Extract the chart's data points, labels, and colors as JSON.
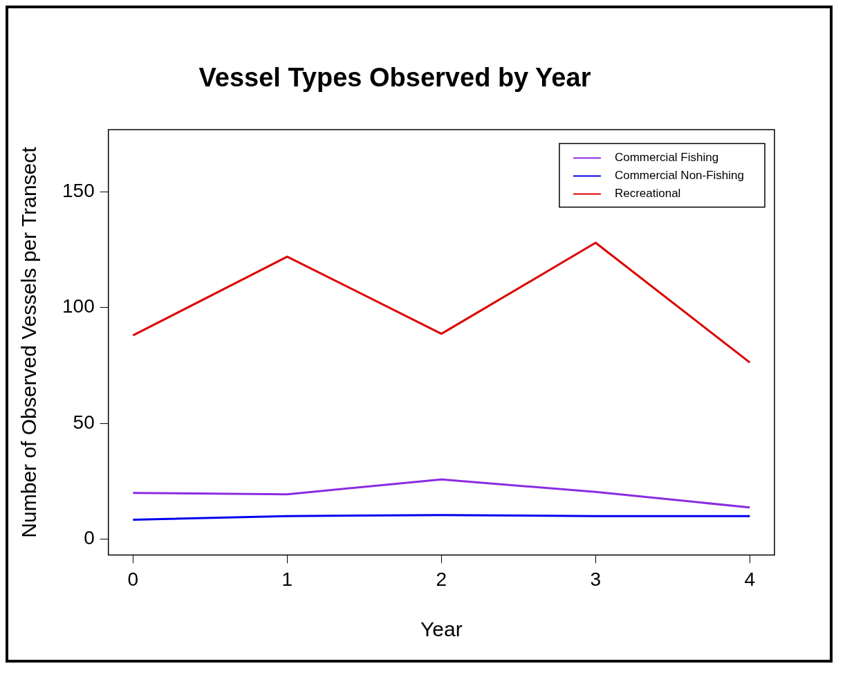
{
  "chart_data": {
    "type": "line",
    "title": "Vessel Types Observed by Year",
    "xlabel": "Year",
    "ylabel": "Number of Observed Vessels per Transect",
    "x": [
      0,
      1,
      2,
      3,
      4
    ],
    "xlim": [
      -0.16,
      4.16
    ],
    "xticks": [
      0,
      1,
      2,
      3,
      4
    ],
    "ylim": [
      -6.8,
      176.8
    ],
    "yticks": [
      0,
      50,
      100,
      150
    ],
    "series": [
      {
        "name": "Commercial Fishing",
        "color": "#8a2be2",
        "values": [
          20,
          19.4,
          25.8,
          20.4,
          13.7
        ]
      },
      {
        "name": "Commercial Non-Fishing",
        "color": "#0000ee",
        "values": [
          8.4,
          10,
          10.4,
          10,
          10
        ]
      },
      {
        "name": "Recreational",
        "color": "#dd0000",
        "values": [
          88,
          122,
          88.7,
          128,
          76.3
        ]
      }
    ],
    "grid": false,
    "legend": "top right",
    "marker": "none",
    "line_style": "solid"
  }
}
